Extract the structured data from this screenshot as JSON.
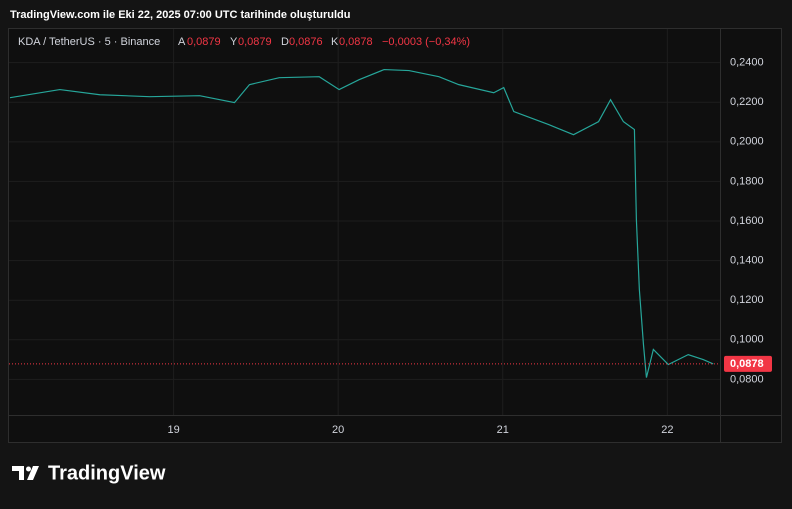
{
  "chart_data": {
    "type": "line",
    "title": "TradingView.com ile Eki 22, 2025 07:00 UTC tarihinde oluşturuldu",
    "legend": {
      "symbol": "KDA / TetherUS · 5 · Binance",
      "open_key": "A",
      "open": "0,0879",
      "high_key": "Y",
      "high": "0,0879",
      "low_key": "D",
      "low": "0,0876",
      "close_key": "K",
      "close": "0,0878",
      "change": "−0,0003 (−0,34%)"
    },
    "series": [
      {
        "color": "#26a69a",
        "x": [
          18.006,
          18.309,
          18.552,
          18.855,
          19.158,
          19.37,
          19.461,
          19.642,
          19.885,
          20.006,
          20.127,
          20.279,
          20.43,
          20.612,
          20.733,
          20.945,
          21.006,
          21.067,
          21.279,
          21.43,
          21.582,
          21.655,
          21.733,
          21.8,
          21.812,
          21.83,
          21.855,
          21.873,
          21.915,
          22.006,
          22.127,
          22.218,
          22.279
        ],
        "values": [
          0.2223,
          0.2264,
          0.2238,
          0.2228,
          0.2233,
          0.2198,
          0.2289,
          0.2324,
          0.2329,
          0.2264,
          0.2314,
          0.2365,
          0.236,
          0.2329,
          0.2289,
          0.2248,
          0.2274,
          0.2153,
          0.2087,
          0.2036,
          0.2102,
          0.2213,
          0.2102,
          0.2062,
          0.1607,
          0.1254,
          0.0976,
          0.0809,
          0.0951,
          0.0875,
          0.0925,
          0.09,
          0.0878
        ]
      }
    ],
    "last_price": {
      "value": 0.0878,
      "label": "0,0878",
      "color": "#f23645"
    },
    "xlim": [
      18.0,
      22.32
    ],
    "xticks": [
      19,
      20,
      21,
      22
    ],
    "ylim": [
      0.062,
      0.257
    ],
    "yticks": [
      {
        "value": 0.08,
        "label": "0,0800"
      },
      {
        "value": 0.1,
        "label": "0,1000"
      },
      {
        "value": 0.12,
        "label": "0,1200"
      },
      {
        "value": 0.14,
        "label": "0,1400"
      },
      {
        "value": 0.16,
        "label": "0,1600"
      },
      {
        "value": 0.18,
        "label": "0,1800"
      },
      {
        "value": 0.2,
        "label": "0,2000"
      },
      {
        "value": 0.22,
        "label": "0,2200"
      },
      {
        "value": 0.24,
        "label": "0,2400"
      }
    ],
    "grid": true,
    "brand": "TradingView"
  }
}
